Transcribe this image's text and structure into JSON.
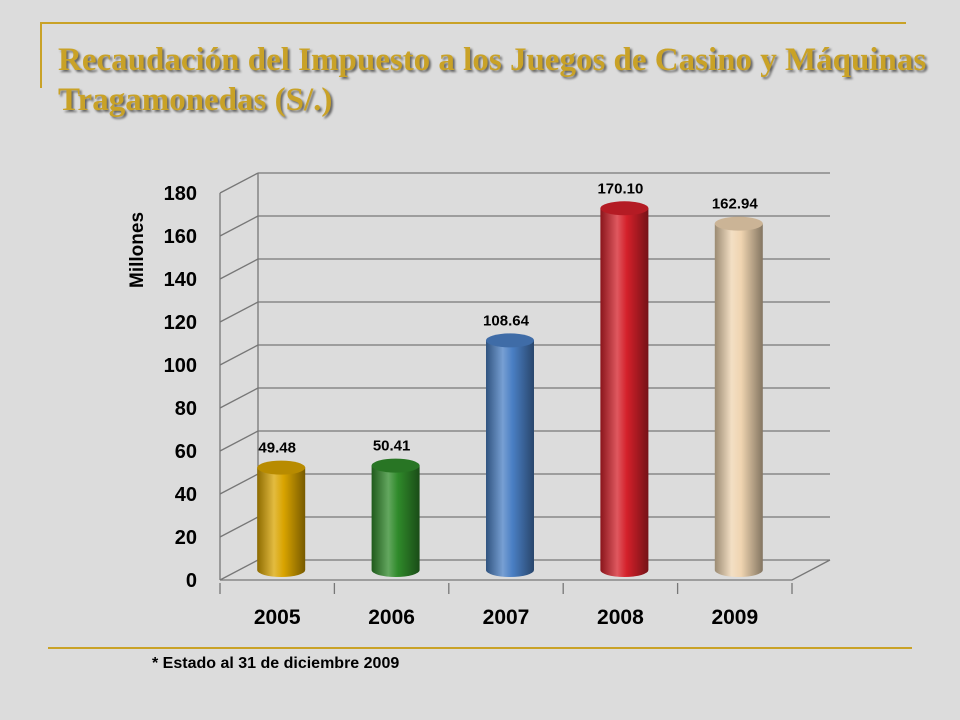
{
  "slide": {
    "title": "Recaudación del Impuesto a los Juegos de Casino y Máquinas Tragamonedas (S/.)",
    "footnote": "* Estado al 31 de diciembre 2009",
    "accent_color": "#c9a227"
  },
  "chart_data": {
    "type": "bar",
    "style": "3d-cylinder",
    "title": "",
    "xlabel": "",
    "ylabel": "Millones",
    "categories": [
      "2005",
      "2006",
      "2007",
      "2008",
      "2009"
    ],
    "values": [
      49.48,
      50.41,
      108.64,
      170.1,
      162.94
    ],
    "data_labels": [
      "49.48",
      "50.41",
      "108.64",
      "170.10",
      "162.94"
    ],
    "bar_colors": [
      "#d9a400",
      "#2f8a2a",
      "#4a7fc4",
      "#d4202a",
      "#efd4b0"
    ],
    "ylim": [
      0,
      180
    ],
    "yticks": [
      0,
      20,
      40,
      60,
      80,
      100,
      120,
      140,
      160,
      180
    ],
    "grid": true,
    "legend": "none"
  }
}
